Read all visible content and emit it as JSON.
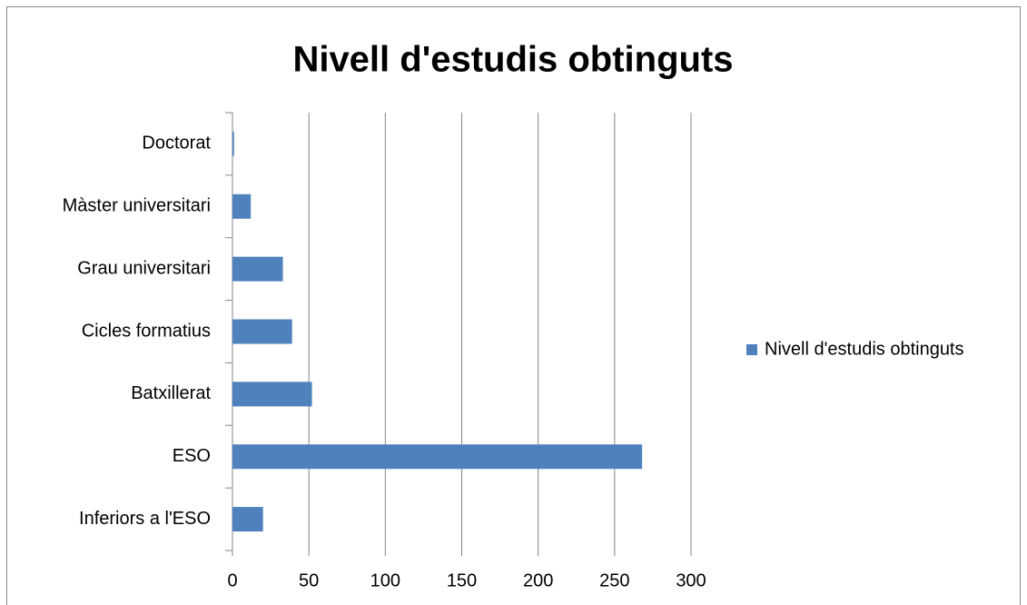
{
  "chart_data": {
    "type": "bar",
    "orientation": "horizontal",
    "title": "Nivell d'estudis obtinguts",
    "categories": [
      "Inferiors a l'ESO",
      "ESO",
      "Batxillerat",
      "Cicles formatius",
      "Grau universitari",
      "Màster universitari",
      "Doctorat"
    ],
    "series": [
      {
        "name": "Nivell d'estudis obtinguts",
        "color": "#4f81bd",
        "values": [
          20,
          268,
          52,
          39,
          33,
          12,
          1
        ]
      }
    ],
    "xlim": [
      0,
      300
    ],
    "xticks": [
      0,
      50,
      100,
      150,
      200,
      250,
      300
    ],
    "grid": true,
    "legend": "right"
  }
}
